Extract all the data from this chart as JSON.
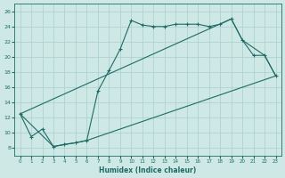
{
  "xlabel": "Humidex (Indice chaleur)",
  "xlim": [
    -0.5,
    23.5
  ],
  "ylim": [
    7,
    27
  ],
  "yticks": [
    8,
    10,
    12,
    14,
    16,
    18,
    20,
    22,
    24,
    26
  ],
  "xticks": [
    0,
    1,
    2,
    3,
    4,
    5,
    6,
    7,
    8,
    9,
    10,
    11,
    12,
    13,
    14,
    15,
    16,
    17,
    18,
    19,
    20,
    21,
    22,
    23
  ],
  "bg_color": "#cde8e5",
  "grid_color": "#aacfcc",
  "line_color": "#1f6b65",
  "main_x": [
    0,
    1,
    2,
    3,
    4,
    5,
    6,
    7,
    8,
    9,
    10,
    11,
    12,
    13,
    14,
    15,
    16,
    17,
    18,
    19,
    20,
    21,
    22,
    23
  ],
  "main_y": [
    12.5,
    9.5,
    10.5,
    8.2,
    8.5,
    8.7,
    9.0,
    15.5,
    18.2,
    21.0,
    24.8,
    24.2,
    24.0,
    24.0,
    24.3,
    24.3,
    24.3,
    24.0,
    24.3,
    25.0,
    22.2,
    20.2,
    20.2,
    17.5
  ],
  "upper_x": [
    0,
    19,
    20,
    22,
    23
  ],
  "upper_y": [
    12.5,
    25.0,
    22.2,
    20.2,
    17.5
  ],
  "lower_x": [
    0,
    3,
    5,
    6,
    23
  ],
  "lower_y": [
    12.5,
    8.2,
    8.7,
    9.0,
    17.5
  ]
}
